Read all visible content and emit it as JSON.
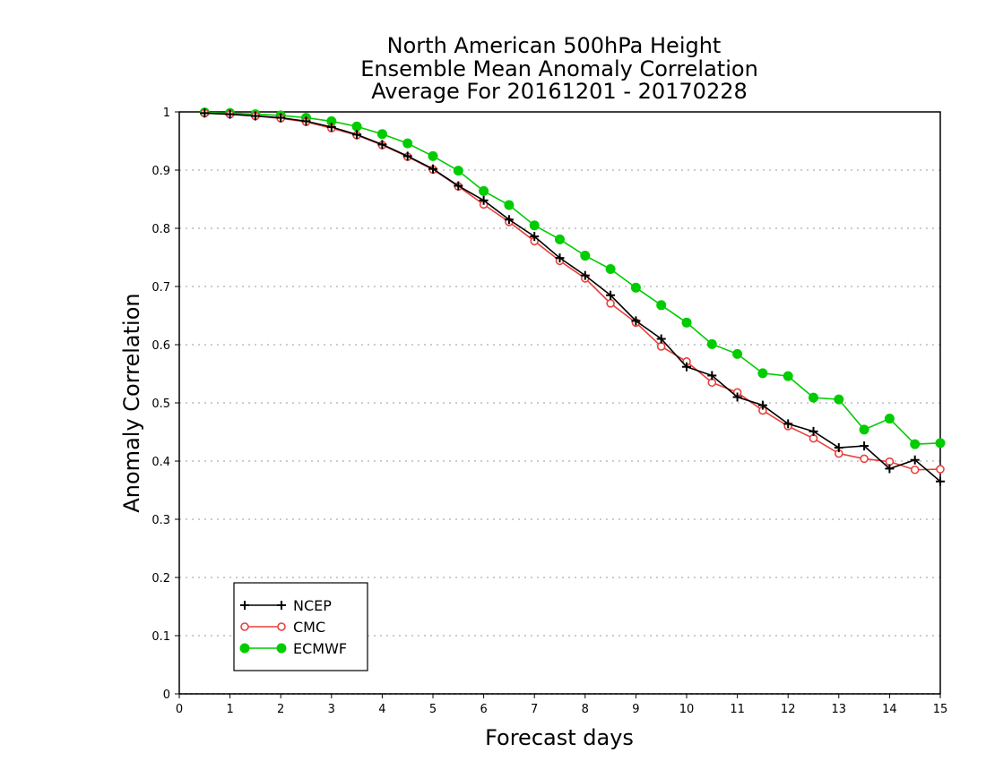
{
  "chart_data": {
    "type": "line",
    "title_lines": [
      "North American 500hPa Height",
      "Ensemble Mean Anomaly Correlation",
      "Average For 20161201 - 20170228"
    ],
    "xlabel": "Forecast days",
    "ylabel": "Anomaly Correlation",
    "xlim": [
      0,
      15
    ],
    "ylim": [
      0,
      1
    ],
    "x_ticks": [
      "0",
      "1",
      "2",
      "3",
      "4",
      "5",
      "6",
      "7",
      "8",
      "9",
      "10",
      "11",
      "12",
      "13",
      "14",
      "15"
    ],
    "y_ticks": [
      "0",
      "0.1",
      "0.2",
      "0.3",
      "0.4",
      "0.5",
      "0.6",
      "0.7",
      "0.8",
      "0.9",
      "1"
    ],
    "grid": "dotted horizontal",
    "legend_position": "bottom-left",
    "x": [
      0.5,
      1,
      1.5,
      2,
      2.5,
      3,
      3.5,
      4,
      4.5,
      5,
      5.5,
      6,
      6.5,
      7,
      7.5,
      8,
      8.5,
      9,
      9.5,
      10,
      10.5,
      11,
      11.5,
      12,
      12.5,
      13,
      13.5,
      14,
      14.5,
      15
    ],
    "series": [
      {
        "name": "NCEP",
        "color": "#000000",
        "marker": "plus",
        "values": [
          0.998,
          0.996,
          0.993,
          0.99,
          0.984,
          0.974,
          0.961,
          0.944,
          0.924,
          0.902,
          0.873,
          0.848,
          0.815,
          0.786,
          0.749,
          0.719,
          0.685,
          0.641,
          0.61,
          0.562,
          0.547,
          0.51,
          0.496,
          0.464,
          0.451,
          0.423,
          0.426,
          0.387,
          0.402,
          0.365
        ]
      },
      {
        "name": "CMC",
        "color": "#e8413c",
        "marker": "open-circle",
        "values": [
          0.998,
          0.996,
          0.993,
          0.989,
          0.983,
          0.972,
          0.96,
          0.943,
          0.923,
          0.901,
          0.872,
          0.841,
          0.811,
          0.778,
          0.744,
          0.714,
          0.671,
          0.638,
          0.597,
          0.571,
          0.535,
          0.518,
          0.487,
          0.46,
          0.439,
          0.413,
          0.404,
          0.399,
          0.385,
          0.386
        ]
      },
      {
        "name": "ECMWF",
        "color": "#00cc00",
        "marker": "filled-circle",
        "values": [
          0.999,
          0.998,
          0.996,
          0.994,
          0.99,
          0.984,
          0.975,
          0.962,
          0.946,
          0.924,
          0.899,
          0.864,
          0.84,
          0.805,
          0.781,
          0.753,
          0.73,
          0.698,
          0.668,
          0.638,
          0.601,
          0.584,
          0.551,
          0.546,
          0.509,
          0.506,
          0.454,
          0.473,
          0.429,
          0.431
        ]
      }
    ]
  }
}
